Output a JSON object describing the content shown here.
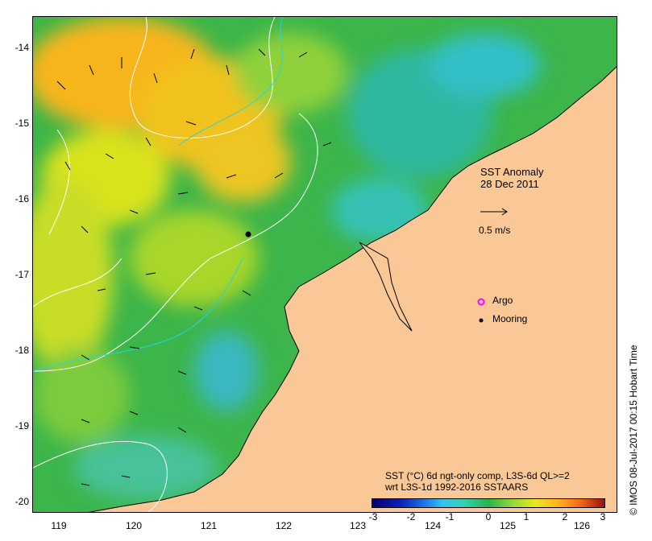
{
  "map": {
    "title_line1": "SST Anomaly",
    "title_line2": "28 Dec 2011",
    "scale_label": "0.5 m/s",
    "legend": {
      "argo_label": "Argo",
      "mooring_label": "Mooring"
    },
    "caption_line1": "SST (°C) 6d ngt-only comp, L3S-6d QL>=2",
    "caption_line2": "wrt L3S-1d 1992-2016 SSTAARS",
    "credit": "© IMOS 08-Jul-2017 00:15 Hobart Time",
    "y_ticks": [
      "-14",
      "-15",
      "-16",
      "-17",
      "-18",
      "-19",
      "-20"
    ],
    "x_ticks": [
      "119",
      "120",
      "121",
      "122",
      "123",
      "124",
      "125",
      "126"
    ],
    "colorbar_ticks": [
      "-3",
      "-2",
      "-1",
      "0",
      "1",
      "2",
      "3"
    ],
    "colors": {
      "land": "#fac896",
      "ocean_base": "#39b54a",
      "argo": "#ff00ff",
      "mooring": "#000000"
    }
  }
}
